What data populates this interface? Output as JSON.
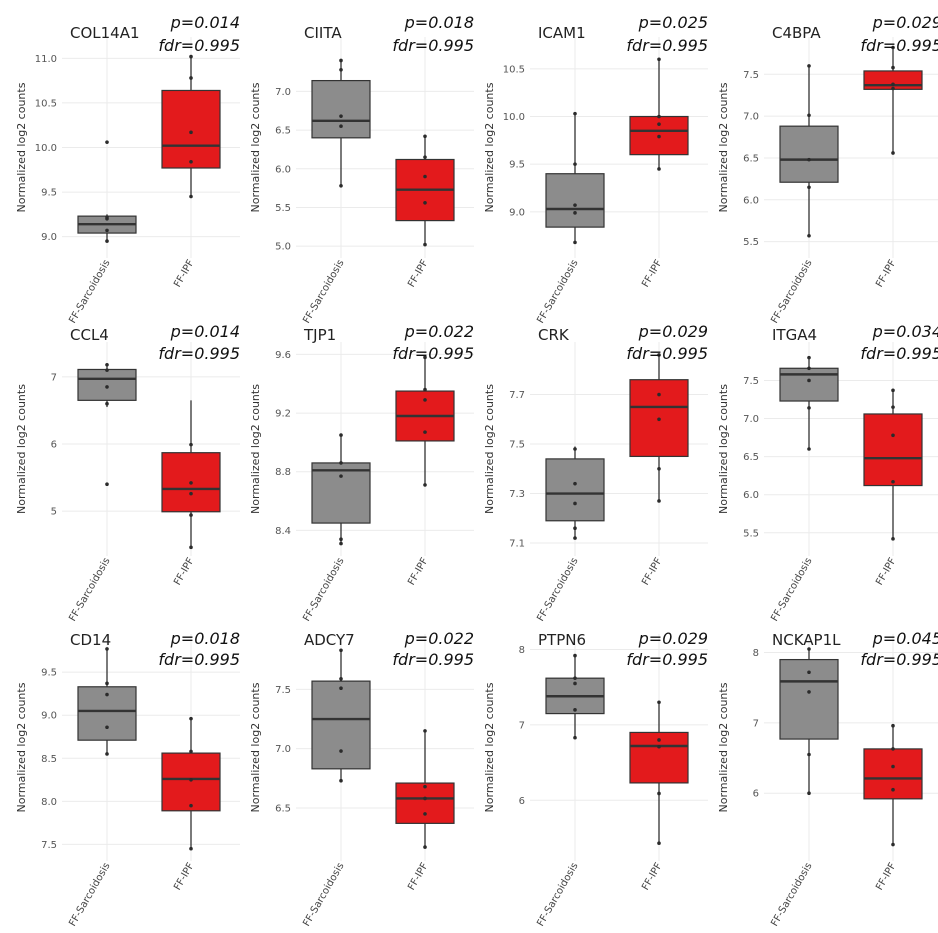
{
  "chart_data": [
    {
      "type": "box",
      "title": "COL14A1",
      "p_label": "p=0.014",
      "fdr_label": "fdr=0.995",
      "ylabel": "Normalized log2 counts",
      "ylim": [
        8.85,
        11.15
      ],
      "yticks": [
        9.0,
        9.5,
        10.0,
        10.5,
        11.0
      ],
      "ytick_labels": [
        "9.0",
        "9.5",
        "10.0",
        "10.5",
        "11.0"
      ],
      "groups": [
        {
          "name": "FF-Sarcoidosis",
          "color": "#8c8c8c",
          "min": 8.95,
          "q1": 9.04,
          "median": 9.14,
          "q3": 9.23,
          "max": 9.25,
          "points": [
            8.95,
            9.07,
            9.2,
            9.22,
            10.06
          ]
        },
        {
          "name": "FF-IPF",
          "color": "#e31a1c",
          "min": 9.45,
          "q1": 9.77,
          "median": 10.02,
          "q3": 10.64,
          "max": 11.02,
          "points": [
            9.45,
            9.84,
            10.17,
            10.78,
            11.02
          ]
        }
      ]
    },
    {
      "type": "box",
      "title": "CIITA",
      "p_label": "p=0.018",
      "fdr_label": "fdr=0.995",
      "ylabel": "Normalized log2 counts",
      "ylim": [
        4.95,
        7.6
      ],
      "yticks": [
        5.0,
        5.5,
        6.0,
        6.5,
        7.0
      ],
      "ytick_labels": [
        "5.0",
        "5.5",
        "6.0",
        "6.5",
        "7.0"
      ],
      "groups": [
        {
          "name": "FF-Sarcoidosis",
          "color": "#8c8c8c",
          "min": 5.78,
          "q1": 6.4,
          "median": 6.62,
          "q3": 7.14,
          "max": 7.4,
          "points": [
            5.78,
            6.55,
            6.68,
            7.28,
            7.4
          ]
        },
        {
          "name": "FF-IPF",
          "color": "#e31a1c",
          "min": 5.02,
          "q1": 5.33,
          "median": 5.73,
          "q3": 6.12,
          "max": 6.42,
          "points": [
            5.02,
            5.56,
            5.9,
            6.15,
            6.42
          ]
        }
      ]
    },
    {
      "type": "box",
      "title": "ICAM1",
      "p_label": "p=0.025",
      "fdr_label": "fdr=0.995",
      "ylabel": "Normalized log2 counts",
      "ylim": [
        8.6,
        10.75
      ],
      "yticks": [
        9.0,
        9.5,
        10.0,
        10.5
      ],
      "ytick_labels": [
        "9.0",
        "9.5",
        "10.0",
        "10.5"
      ],
      "groups": [
        {
          "name": "FF-Sarcoidosis",
          "color": "#8c8c8c",
          "min": 8.68,
          "q1": 8.84,
          "median": 9.03,
          "q3": 9.4,
          "max": 10.03,
          "points": [
            8.68,
            8.99,
            9.07,
            9.5,
            10.03
          ]
        },
        {
          "name": "FF-IPF",
          "color": "#e31a1c",
          "min": 9.45,
          "q1": 9.6,
          "median": 9.85,
          "q3": 10.0,
          "max": 10.6,
          "points": [
            9.45,
            9.79,
            9.92,
            10.0,
            10.6
          ]
        }
      ]
    },
    {
      "type": "box",
      "title": "C4BPA",
      "p_label": "p=0.029",
      "fdr_label": "fdr=0.995",
      "ylabel": "Normalized log2 counts",
      "ylim": [
        5.4,
        7.85
      ],
      "yticks": [
        5.5,
        6.0,
        6.5,
        7.0,
        7.5
      ],
      "ytick_labels": [
        "5.5",
        "6.0",
        "6.5",
        "7.0",
        "7.5"
      ],
      "groups": [
        {
          "name": "FF-Sarcoidosis",
          "color": "#8c8c8c",
          "min": 5.57,
          "q1": 6.21,
          "median": 6.48,
          "q3": 6.88,
          "max": 7.6,
          "points": [
            5.57,
            6.15,
            6.48,
            7.01,
            7.6
          ]
        },
        {
          "name": "FF-IPF",
          "color": "#e31a1c",
          "min": 6.56,
          "q1": 7.32,
          "median": 7.37,
          "q3": 7.54,
          "max": 7.82,
          "points": [
            6.56,
            7.33,
            7.38,
            7.58,
            7.82
          ]
        }
      ]
    },
    {
      "type": "box",
      "title": "CCL4",
      "p_label": "p=0.014",
      "fdr_label": "fdr=0.995",
      "ylabel": "Normalized log2 counts",
      "ylim": [
        4.45,
        7.4
      ],
      "yticks": [
        5,
        6,
        7
      ],
      "ytick_labels": [
        "5",
        "6",
        "7"
      ],
      "groups": [
        {
          "name": "FF-Sarcoidosis",
          "color": "#8c8c8c",
          "min": 6.55,
          "q1": 6.65,
          "median": 6.97,
          "q3": 7.11,
          "max": 7.2,
          "points": [
            5.4,
            6.6,
            6.85,
            7.1,
            7.18
          ]
        },
        {
          "name": "FF-IPF",
          "color": "#e31a1c",
          "min": 4.46,
          "q1": 4.99,
          "median": 5.33,
          "q3": 5.87,
          "max": 6.65,
          "points": [
            4.46,
            4.94,
            5.26,
            5.42,
            5.99
          ]
        }
      ]
    },
    {
      "type": "box",
      "title": "TJP1",
      "p_label": "p=0.022",
      "fdr_label": "fdr=0.995",
      "ylabel": "Normalized log2 counts",
      "ylim": [
        8.28,
        9.63
      ],
      "yticks": [
        8.4,
        8.8,
        9.2,
        9.6
      ],
      "ytick_labels": [
        "8.4",
        "8.8",
        "9.2",
        "9.6"
      ],
      "groups": [
        {
          "name": "FF-Sarcoidosis",
          "color": "#8c8c8c",
          "min": 8.31,
          "q1": 8.45,
          "median": 8.81,
          "q3": 8.86,
          "max": 9.05,
          "points": [
            8.31,
            8.34,
            8.77,
            8.86,
            9.05
          ]
        },
        {
          "name": "FF-IPF",
          "color": "#e31a1c",
          "min": 8.71,
          "q1": 9.01,
          "median": 9.18,
          "q3": 9.35,
          "max": 9.58,
          "points": [
            8.71,
            9.07,
            9.29,
            9.36,
            9.58
          ]
        }
      ]
    },
    {
      "type": "box",
      "title": "CRK",
      "p_label": "p=0.029",
      "fdr_label": "fdr=0.995",
      "ylabel": "Normalized log2 counts",
      "ylim": [
        7.08,
        7.88
      ],
      "yticks": [
        7.1,
        7.3,
        7.5,
        7.7
      ],
      "ytick_labels": [
        "7.1",
        "7.3",
        "7.5",
        "7.7"
      ],
      "groups": [
        {
          "name": "FF-Sarcoidosis",
          "color": "#8c8c8c",
          "min": 7.12,
          "q1": 7.19,
          "median": 7.3,
          "q3": 7.44,
          "max": 7.49,
          "points": [
            7.12,
            7.16,
            7.26,
            7.34,
            7.48
          ]
        },
        {
          "name": "FF-IPF",
          "color": "#e31a1c",
          "min": 7.27,
          "q1": 7.45,
          "median": 7.65,
          "q3": 7.76,
          "max": 7.86,
          "points": [
            7.27,
            7.4,
            7.6,
            7.7,
            7.86
          ]
        }
      ]
    },
    {
      "type": "box",
      "title": "ITGA4",
      "p_label": "p=0.034",
      "fdr_label": "fdr=0.995",
      "ylabel": "Normalized log2 counts",
      "ylim": [
        5.3,
        7.9
      ],
      "yticks": [
        5.5,
        6.0,
        6.5,
        7.0,
        7.5
      ],
      "ytick_labels": [
        "5.5",
        "6.0",
        "6.5",
        "7.0",
        "7.5"
      ],
      "groups": [
        {
          "name": "FF-Sarcoidosis",
          "color": "#8c8c8c",
          "min": 6.6,
          "q1": 7.23,
          "median": 7.58,
          "q3": 7.66,
          "max": 7.8,
          "points": [
            6.6,
            7.14,
            7.5,
            7.66,
            7.8
          ]
        },
        {
          "name": "FF-IPF",
          "color": "#e31a1c",
          "min": 5.42,
          "q1": 6.12,
          "median": 6.48,
          "q3": 7.06,
          "max": 7.37,
          "points": [
            5.42,
            6.17,
            6.78,
            7.15,
            7.37
          ]
        }
      ]
    },
    {
      "type": "box",
      "title": "CD14",
      "p_label": "p=0.018",
      "fdr_label": "fdr=0.995",
      "ylabel": "Normalized log2 counts",
      "ylim": [
        7.4,
        9.85
      ],
      "yticks": [
        7.5,
        8.0,
        8.5,
        9.0,
        9.5
      ],
      "ytick_labels": [
        "7.5",
        "8.0",
        "8.5",
        "9.0",
        "9.5"
      ],
      "groups": [
        {
          "name": "FF-Sarcoidosis",
          "color": "#8c8c8c",
          "min": 8.55,
          "q1": 8.71,
          "median": 9.05,
          "q3": 9.33,
          "max": 9.77,
          "points": [
            8.55,
            8.86,
            9.24,
            9.37,
            9.77
          ]
        },
        {
          "name": "FF-IPF",
          "color": "#e31a1c",
          "min": 7.45,
          "q1": 7.89,
          "median": 8.26,
          "q3": 8.56,
          "max": 8.96,
          "points": [
            7.45,
            7.95,
            8.25,
            8.58,
            8.96
          ]
        }
      ]
    },
    {
      "type": "box",
      "title": "ADCY7",
      "p_label": "p=0.022",
      "fdr_label": "fdr=0.995",
      "ylabel": "Normalized log2 counts",
      "ylim": [
        6.12,
        7.9
      ],
      "yticks": [
        6.5,
        7.0,
        7.5
      ],
      "ytick_labels": [
        "6.5",
        "7.0",
        "7.5"
      ],
      "groups": [
        {
          "name": "FF-Sarcoidosis",
          "color": "#8c8c8c",
          "min": 6.73,
          "q1": 6.83,
          "median": 7.25,
          "q3": 7.57,
          "max": 7.83,
          "points": [
            6.73,
            6.98,
            7.51,
            7.59,
            7.83
          ]
        },
        {
          "name": "FF-IPF",
          "color": "#e31a1c",
          "min": 6.17,
          "q1": 6.37,
          "median": 6.58,
          "q3": 6.71,
          "max": 7.15,
          "points": [
            6.17,
            6.45,
            6.58,
            6.68,
            7.15
          ]
        }
      ]
    },
    {
      "type": "box",
      "title": "PTPN6",
      "p_label": "p=0.029",
      "fdr_label": "fdr=0.995",
      "ylabel": "Normalized log2 counts",
      "ylim": [
        5.3,
        8.1
      ],
      "yticks": [
        6,
        7,
        8
      ],
      "ytick_labels": [
        "6",
        "7",
        "8"
      ],
      "groups": [
        {
          "name": "FF-Sarcoidosis",
          "color": "#8c8c8c",
          "min": 6.83,
          "q1": 7.15,
          "median": 7.38,
          "q3": 7.62,
          "max": 7.92,
          "points": [
            6.83,
            7.2,
            7.55,
            7.62,
            7.92
          ]
        },
        {
          "name": "FF-IPF",
          "color": "#e31a1c",
          "min": 5.43,
          "q1": 6.23,
          "median": 6.72,
          "q3": 6.9,
          "max": 7.3,
          "points": [
            5.43,
            6.09,
            6.71,
            6.8,
            7.3
          ]
        }
      ]
    },
    {
      "type": "box",
      "title": "NCKAP1L",
      "p_label": "p=0.045",
      "fdr_label": "fdr=0.995",
      "ylabel": "Normalized log2 counts",
      "ylim": [
        5.15,
        8.15
      ],
      "yticks": [
        6,
        7,
        8
      ],
      "ytick_labels": [
        "6",
        "7",
        "8"
      ],
      "groups": [
        {
          "name": "FF-Sarcoidosis",
          "color": "#8c8c8c",
          "min": 6.0,
          "q1": 6.77,
          "median": 7.59,
          "q3": 7.9,
          "max": 8.05,
          "points": [
            6.0,
            6.55,
            7.44,
            7.72,
            8.05
          ]
        },
        {
          "name": "FF-IPF",
          "color": "#e31a1c",
          "min": 5.27,
          "q1": 5.92,
          "median": 6.21,
          "q3": 6.63,
          "max": 6.96,
          "points": [
            5.27,
            6.05,
            6.38,
            6.63,
            6.96
          ]
        }
      ]
    }
  ]
}
